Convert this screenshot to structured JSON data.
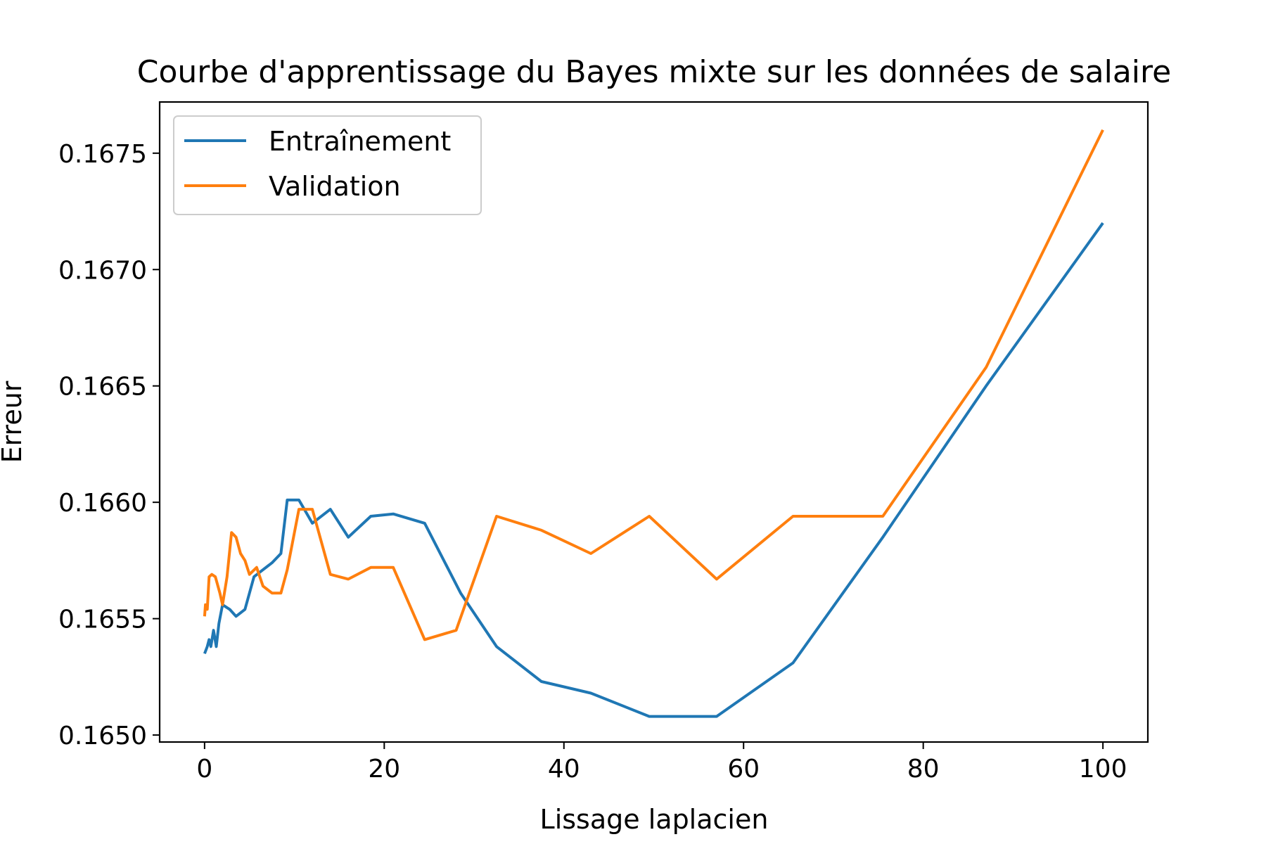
{
  "chart_data": {
    "type": "line",
    "title": "Courbe d'apprentissage du Bayes mixte sur les données de salaire",
    "xlabel": "Lissage laplacien",
    "ylabel": "Erreur",
    "xlim": [
      -5,
      105
    ],
    "ylim": [
      0.16497,
      0.16772
    ],
    "xticks": [
      0,
      20,
      40,
      60,
      80,
      100
    ],
    "xtick_labels": [
      "0",
      "20",
      "40",
      "60",
      "80",
      "100"
    ],
    "yticks": [
      0.165,
      0.1655,
      0.166,
      0.1665,
      0.167,
      0.1675
    ],
    "ytick_labels": [
      "0.1650",
      "0.1655",
      "0.1660",
      "0.1665",
      "0.1670",
      "0.1675"
    ],
    "grid": false,
    "legend_position": "top-left",
    "series": [
      {
        "name": "Entraînement",
        "color": "#1f77b4",
        "points": [
          [
            0.0,
            0.16535
          ],
          [
            0.3,
            0.16538
          ],
          [
            0.5,
            0.16541
          ],
          [
            0.7,
            0.16538
          ],
          [
            1.0,
            0.16545
          ],
          [
            1.3,
            0.16538
          ],
          [
            1.6,
            0.16548
          ],
          [
            2.0,
            0.16556
          ],
          [
            2.8,
            0.16554
          ],
          [
            3.5,
            0.16551
          ],
          [
            4.5,
            0.16554
          ],
          [
            5.5,
            0.16568
          ],
          [
            6.5,
            0.16571
          ],
          [
            7.5,
            0.16574
          ],
          [
            8.5,
            0.16578
          ],
          [
            9.2,
            0.16601
          ],
          [
            10.5,
            0.16601
          ],
          [
            12.0,
            0.16591
          ],
          [
            14.0,
            0.16597
          ],
          [
            16.0,
            0.16585
          ],
          [
            18.5,
            0.16594
          ],
          [
            21.0,
            0.16595
          ],
          [
            24.5,
            0.16591
          ],
          [
            28.5,
            0.16561
          ],
          [
            32.5,
            0.16538
          ],
          [
            37.5,
            0.16523
          ],
          [
            43.0,
            0.16518
          ],
          [
            49.5,
            0.16508
          ],
          [
            57.0,
            0.16508
          ],
          [
            65.5,
            0.16531
          ],
          [
            75.5,
            0.16585
          ],
          [
            87.0,
            0.1665
          ],
          [
            100.0,
            0.1672
          ]
        ]
      },
      {
        "name": "Validation",
        "color": "#ff7f0e",
        "points": [
          [
            0.0,
            0.16551
          ],
          [
            0.1,
            0.16556
          ],
          [
            0.3,
            0.16554
          ],
          [
            0.5,
            0.16568
          ],
          [
            0.8,
            0.16569
          ],
          [
            1.2,
            0.16568
          ],
          [
            1.7,
            0.16561
          ],
          [
            2.0,
            0.16556
          ],
          [
            2.5,
            0.16568
          ],
          [
            3.0,
            0.16587
          ],
          [
            3.5,
            0.16585
          ],
          [
            4.0,
            0.16578
          ],
          [
            4.5,
            0.16575
          ],
          [
            5.0,
            0.16569
          ],
          [
            5.8,
            0.16572
          ],
          [
            6.5,
            0.16564
          ],
          [
            7.5,
            0.16561
          ],
          [
            8.5,
            0.16561
          ],
          [
            9.2,
            0.16571
          ],
          [
            10.5,
            0.16597
          ],
          [
            12.0,
            0.16597
          ],
          [
            14.0,
            0.16569
          ],
          [
            16.0,
            0.16567
          ],
          [
            18.5,
            0.16572
          ],
          [
            21.0,
            0.16572
          ],
          [
            24.5,
            0.16541
          ],
          [
            28.0,
            0.16545
          ],
          [
            32.5,
            0.16594
          ],
          [
            37.5,
            0.16588
          ],
          [
            43.0,
            0.16578
          ],
          [
            49.5,
            0.16594
          ],
          [
            57.0,
            0.16567
          ],
          [
            65.5,
            0.16594
          ],
          [
            75.5,
            0.16594
          ],
          [
            87.0,
            0.16658
          ],
          [
            100.0,
            0.1676
          ]
        ]
      }
    ]
  }
}
